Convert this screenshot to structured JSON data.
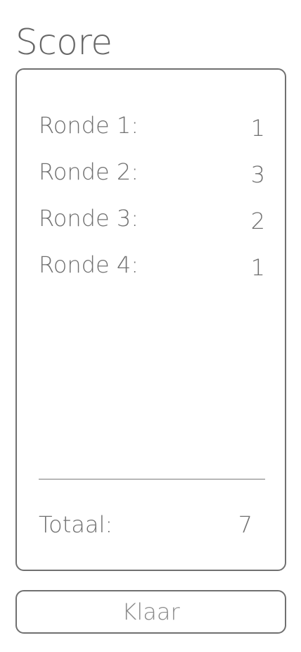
{
  "header": {
    "title": "Score"
  },
  "rounds": [
    {
      "label": "Ronde 1:",
      "score": "1"
    },
    {
      "label": "Ronde 2:",
      "score": "3"
    },
    {
      "label": "Ronde 3:",
      "score": "2"
    },
    {
      "label": "Ronde 4:",
      "score": "1"
    }
  ],
  "total": {
    "label": "Totaal:",
    "score": "7"
  },
  "actions": {
    "done_label": "Klaar"
  },
  "colors": {
    "text": "#707070",
    "border": "#707070",
    "background": "#ffffff"
  }
}
